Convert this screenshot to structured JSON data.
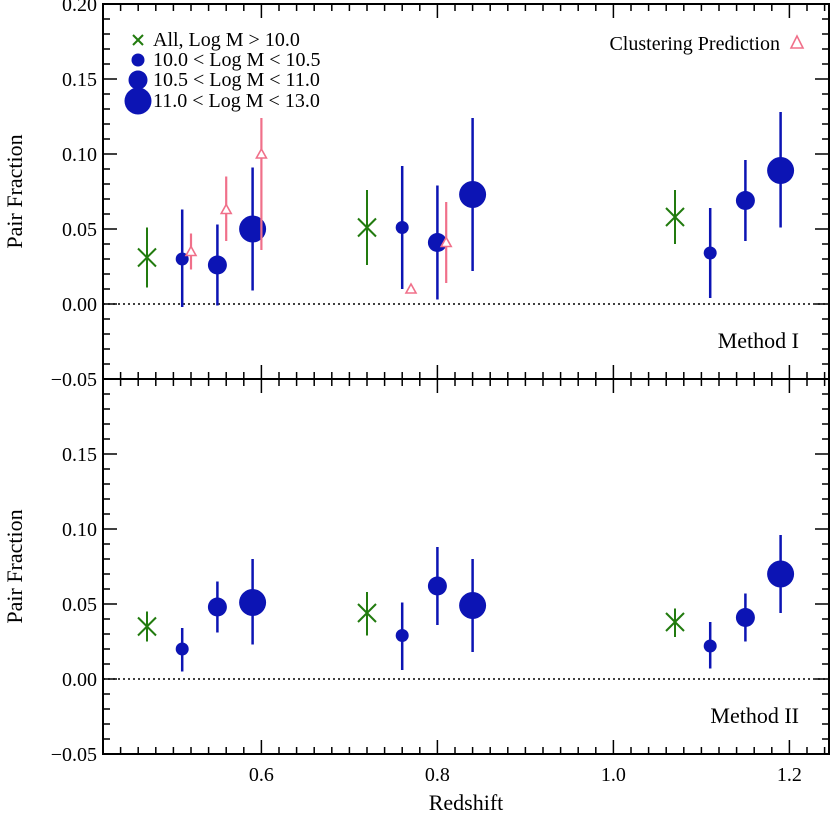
{
  "chart_data": {
    "type": "scatter",
    "xlabel": "Redshift",
    "xlim": [
      0.42,
      1.245
    ],
    "xticks": [
      "0.6",
      "0.8",
      "1.0",
      "1.2"
    ],
    "xtick_values": [
      0.6,
      0.8,
      1.0,
      1.2
    ],
    "colors": {
      "all": "#227b0f",
      "mass": "#0c14b4",
      "cluster": "#f0708a",
      "axis": "#000000"
    },
    "panels": [
      {
        "id": "method-1",
        "ylabel": "Pair Fraction",
        "label": "Method I",
        "ylim": [
          -0.05,
          0.2
        ],
        "yticks": [
          "−0.05",
          "0.00",
          "0.05",
          "0.10",
          "0.15",
          "0.20"
        ],
        "ytick_values": [
          -0.05,
          0.0,
          0.05,
          0.1,
          0.15,
          0.2
        ],
        "series": [
          {
            "name": "All, Log M > 10.0",
            "marker": "x",
            "points": [
              {
                "x": 0.47,
                "y": 0.031,
                "lo": 0.011,
                "hi": 0.051
              },
              {
                "x": 0.72,
                "y": 0.051,
                "lo": 0.026,
                "hi": 0.076
              },
              {
                "x": 1.07,
                "y": 0.058,
                "lo": 0.04,
                "hi": 0.076
              }
            ]
          },
          {
            "name": "10.0 < Log M < 10.5",
            "marker": "circle-small",
            "points": [
              {
                "x": 0.51,
                "y": 0.03,
                "lo": -0.002,
                "hi": 0.063
              },
              {
                "x": 0.76,
                "y": 0.051,
                "lo": 0.01,
                "hi": 0.092
              },
              {
                "x": 1.11,
                "y": 0.034,
                "lo": 0.004,
                "hi": 0.064
              }
            ]
          },
          {
            "name": "10.5 < Log M < 11.0",
            "marker": "circle-medium",
            "points": [
              {
                "x": 0.55,
                "y": 0.026,
                "lo": -0.001,
                "hi": 0.053
              },
              {
                "x": 0.8,
                "y": 0.041,
                "lo": 0.003,
                "hi": 0.079
              },
              {
                "x": 1.15,
                "y": 0.069,
                "lo": 0.042,
                "hi": 0.096
              }
            ]
          },
          {
            "name": "11.0 < Log M < 13.0",
            "marker": "circle-large",
            "points": [
              {
                "x": 0.59,
                "y": 0.05,
                "lo": 0.009,
                "hi": 0.091
              },
              {
                "x": 0.84,
                "y": 0.073,
                "lo": 0.022,
                "hi": 0.124
              },
              {
                "x": 1.19,
                "y": 0.089,
                "lo": 0.051,
                "hi": 0.128
              }
            ]
          },
          {
            "name": "Clustering Prediction",
            "marker": "triangle",
            "points": [
              {
                "x": 0.52,
                "y": 0.035,
                "lo": 0.023,
                "hi": 0.047
              },
              {
                "x": 0.56,
                "y": 0.063,
                "lo": 0.042,
                "hi": 0.085
              },
              {
                "x": 0.6,
                "y": 0.1,
                "lo": 0.036,
                "hi": 0.124
              },
              {
                "x": 0.77,
                "y": 0.01,
                "lo": 0.007,
                "hi": 0.013
              },
              {
                "x": 0.81,
                "y": 0.041,
                "lo": 0.014,
                "hi": 0.068
              }
            ]
          }
        ]
      },
      {
        "id": "method-2",
        "ylabel": "Pair Fraction",
        "label": "Method II",
        "ylim": [
          -0.05,
          0.2
        ],
        "yticks": [
          "−0.05",
          "0.00",
          "0.05",
          "0.10",
          "0.15"
        ],
        "ytick_values": [
          -0.05,
          0.0,
          0.05,
          0.1,
          0.15
        ],
        "series": [
          {
            "name": "All, Log M > 10.0",
            "marker": "x",
            "points": [
              {
                "x": 0.47,
                "y": 0.035,
                "lo": 0.025,
                "hi": 0.045
              },
              {
                "x": 0.72,
                "y": 0.044,
                "lo": 0.029,
                "hi": 0.058
              },
              {
                "x": 1.07,
                "y": 0.038,
                "lo": 0.028,
                "hi": 0.047
              }
            ]
          },
          {
            "name": "10.0 < Log M < 10.5",
            "marker": "circle-small",
            "points": [
              {
                "x": 0.51,
                "y": 0.02,
                "lo": 0.005,
                "hi": 0.034
              },
              {
                "x": 0.76,
                "y": 0.029,
                "lo": 0.006,
                "hi": 0.051
              },
              {
                "x": 1.11,
                "y": 0.022,
                "lo": 0.007,
                "hi": 0.038
              }
            ]
          },
          {
            "name": "10.5 < Log M < 11.0",
            "marker": "circle-medium",
            "points": [
              {
                "x": 0.55,
                "y": 0.048,
                "lo": 0.031,
                "hi": 0.065
              },
              {
                "x": 0.8,
                "y": 0.062,
                "lo": 0.036,
                "hi": 0.088
              },
              {
                "x": 1.15,
                "y": 0.041,
                "lo": 0.025,
                "hi": 0.057
              }
            ]
          },
          {
            "name": "11.0 < Log M < 13.0",
            "marker": "circle-large",
            "points": [
              {
                "x": 0.59,
                "y": 0.051,
                "lo": 0.023,
                "hi": 0.08
              },
              {
                "x": 0.84,
                "y": 0.049,
                "lo": 0.018,
                "hi": 0.08
              },
              {
                "x": 1.19,
                "y": 0.07,
                "lo": 0.044,
                "hi": 0.096
              }
            ]
          }
        ]
      }
    ],
    "legend": {
      "placement": "top-left",
      "entries": [
        {
          "marker": "x",
          "text": "All, Log M > 10.0"
        },
        {
          "marker": "circle-small",
          "text": "10.0 < Log M < 10.5"
        },
        {
          "marker": "circle-medium",
          "text": "10.5 < Log M < 11.0"
        },
        {
          "marker": "circle-large",
          "text": "11.0 < Log M < 13.0"
        }
      ],
      "right_entry": {
        "marker": "triangle",
        "text": "Clustering Prediction"
      }
    }
  }
}
